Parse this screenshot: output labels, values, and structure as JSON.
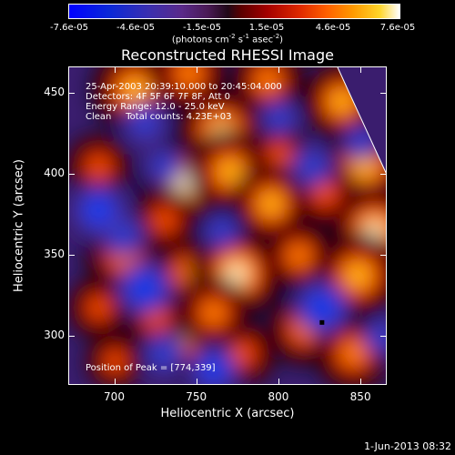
{
  "colorbar": {
    "ticks": [
      "-7.6e-05",
      "-4.6e-05",
      "-1.5e-05",
      "1.5e-05",
      "4.6e-05",
      "7.6e-05"
    ],
    "units_text": "(photons cm",
    "units_sup1": "-2",
    "units_mid": " s",
    "units_sup2": "-1",
    "units_end": " asec",
    "units_sup3": "-2",
    "units_close": ")"
  },
  "title": "Reconstructed RHESSI Image",
  "info": {
    "time": "25-Apr-2003 20:39:10.000 to 20:45:04.000",
    "detectors": "Detectors: 4F 5F 6F 7F 8F, Att 0",
    "energy": "Energy Range: 12.0 - 25.0 keV",
    "clean": "Clean     Total counts: 4.23E+03",
    "peak": "Position of Peak = [774,339]"
  },
  "chart_data": {
    "type": "heatmap",
    "title": "Reconstructed RHESSI Image",
    "xlabel": "Heliocentric X (arcsec)",
    "ylabel": "Heliocentric Y (arcsec)",
    "xlim": [
      672,
      866
    ],
    "ylim": [
      270,
      466
    ],
    "xticks": [
      700,
      750,
      800,
      850
    ],
    "yticks": [
      300,
      350,
      400,
      450
    ],
    "color_range": [
      -7.6e-05,
      7.6e-05
    ],
    "colormap": [
      "#0000ff",
      "#5a2a8a",
      "#200818",
      "#a40000",
      "#ff6000",
      "#ffd52a",
      "#ffffff"
    ],
    "peak_position": [
      774,
      339
    ],
    "blobs": [
      {
        "x": 712,
        "y": 452,
        "v": 0.9
      },
      {
        "x": 745,
        "y": 462,
        "v": 0.75
      },
      {
        "x": 765,
        "y": 425,
        "v": 1.0
      },
      {
        "x": 793,
        "y": 458,
        "v": 0.7
      },
      {
        "x": 838,
        "y": 445,
        "v": 0.8
      },
      {
        "x": 742,
        "y": 395,
        "v": 0.95
      },
      {
        "x": 770,
        "y": 402,
        "v": 0.85
      },
      {
        "x": 800,
        "y": 412,
        "v": 0.55
      },
      {
        "x": 852,
        "y": 405,
        "v": 0.9
      },
      {
        "x": 690,
        "y": 405,
        "v": 0.6
      },
      {
        "x": 730,
        "y": 372,
        "v": 0.6
      },
      {
        "x": 795,
        "y": 382,
        "v": 0.8
      },
      {
        "x": 858,
        "y": 365,
        "v": 1.0
      },
      {
        "x": 828,
        "y": 388,
        "v": 0.6
      },
      {
        "x": 705,
        "y": 350,
        "v": 0.75
      },
      {
        "x": 745,
        "y": 340,
        "v": 0.7
      },
      {
        "x": 774,
        "y": 339,
        "v": 1.0
      },
      {
        "x": 812,
        "y": 350,
        "v": 0.65
      },
      {
        "x": 848,
        "y": 338,
        "v": 0.9
      },
      {
        "x": 690,
        "y": 318,
        "v": 0.55
      },
      {
        "x": 740,
        "y": 302,
        "v": 0.9
      },
      {
        "x": 778,
        "y": 290,
        "v": 0.6
      },
      {
        "x": 815,
        "y": 305,
        "v": 0.7
      },
      {
        "x": 845,
        "y": 290,
        "v": 0.75
      },
      {
        "x": 725,
        "y": 312,
        "v": 0.6
      },
      {
        "x": 700,
        "y": 285,
        "v": 0.5
      },
      {
        "x": 760,
        "y": 315,
        "v": 0.7
      },
      {
        "x": 718,
        "y": 432,
        "v": -0.6
      },
      {
        "x": 690,
        "y": 378,
        "v": -0.8
      },
      {
        "x": 730,
        "y": 405,
        "v": -0.5
      },
      {
        "x": 718,
        "y": 330,
        "v": -0.85
      },
      {
        "x": 705,
        "y": 362,
        "v": -0.6
      },
      {
        "x": 765,
        "y": 365,
        "v": -0.5
      },
      {
        "x": 760,
        "y": 280,
        "v": -0.7
      },
      {
        "x": 800,
        "y": 435,
        "v": -0.5
      },
      {
        "x": 826,
        "y": 318,
        "v": -0.85
      },
      {
        "x": 820,
        "y": 405,
        "v": -0.6
      },
      {
        "x": 850,
        "y": 420,
        "v": -0.5
      },
      {
        "x": 862,
        "y": 300,
        "v": -0.5
      },
      {
        "x": 730,
        "y": 290,
        "v": -0.6
      }
    ]
  },
  "footer": "1-Jun-2013 08:32"
}
